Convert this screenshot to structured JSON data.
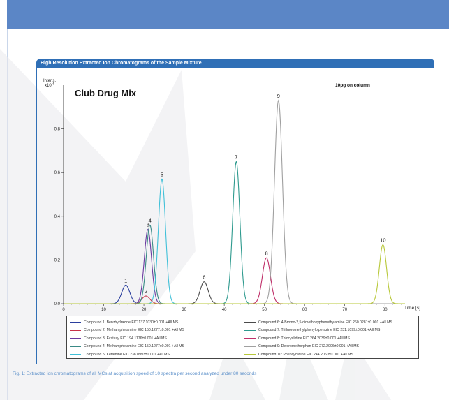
{
  "panel_title": "High Resolution Extracted Ion Chromatograms of the Sample Mixture",
  "caption": "Fig. 1: Extracted ion chromatograms of all MCs at acquisition speed of 10 spectra per second analyzed under 80 seconds",
  "chart_data": {
    "type": "line",
    "title": "Club Drug Mix",
    "annotation": "10pg on column",
    "ylabel_lines": [
      "Intens.",
      "x10"
    ],
    "ylabel_exponent": "4",
    "xlabel": "Time [s]",
    "xlim": [
      0,
      85
    ],
    "ylim": [
      0,
      1.0
    ],
    "x_ticks": [
      0,
      10,
      20,
      30,
      40,
      50,
      60,
      70,
      80
    ],
    "x_tick_labels": [
      "0",
      "10",
      "20",
      "30",
      "40",
      "50",
      "60",
      "70",
      "80"
    ],
    "y_ticks": [
      0.0,
      0.2,
      0.4,
      0.6,
      0.8
    ],
    "y_tick_labels": [
      "0.0",
      "0.2",
      "0.4",
      "0.6",
      "0.8"
    ],
    "legend_position": "bottom",
    "series": [
      {
        "peak_label": "1",
        "legend": "Compound 1: Benzhydrazine  EIC 137.1030±0.001  +All MS",
        "color": "#2b3f9e",
        "center": 15.5,
        "height": 0.085,
        "width": 1.0
      },
      {
        "peak_label": "2",
        "legend": "Compound 2: Methamphetamine  EIC 150.1277±0.001  +All MS",
        "color": "#c8324a",
        "center": 20.5,
        "height": 0.035,
        "width": 1.0
      },
      {
        "peak_label": "3",
        "legend": "Compound 3: Ecstasy  EIC 194.1176±0.001  +All MS",
        "color": "#6a3aa0",
        "center": 21.0,
        "height": 0.34,
        "width": 0.9
      },
      {
        "peak_label": "4",
        "legend": "Compound 4: Methamphetamine  EIC 150.1277±0.001  +All MS",
        "color": "#3a8a86",
        "center": 21.5,
        "height": 0.36,
        "width": 0.9
      },
      {
        "peak_label": "5",
        "legend": "Compound 5: Ketamine  EIC 238.0993±0.001  +All MS",
        "color": "#40c0d8",
        "center": 24.5,
        "height": 0.57,
        "width": 0.9
      },
      {
        "peak_label": "6",
        "legend": "Compound 6: 4-Bromo-2,5-dimethoxyphenethylamine  EIC 260.0281±0.001  +All MS",
        "color": "#4a4a4a",
        "center": 35.0,
        "height": 0.1,
        "width": 1.0
      },
      {
        "peak_label": "7",
        "legend": "Compound 7: Trifluoromethylphenylpiperazine  EIC 231.1099±0.001  +All MS",
        "color": "#2e9a8e",
        "center": 43.0,
        "height": 0.65,
        "width": 0.9
      },
      {
        "peak_label": "8",
        "legend": "Compound 8: Thiocyclidine  EIC 264.2039±0.001  +All MS",
        "color": "#c0306a",
        "center": 50.5,
        "height": 0.21,
        "width": 1.0
      },
      {
        "peak_label": "9",
        "legend": "Compound 9: Dextromethorphan  EIC 272.2006±0.001  +All MS",
        "color": "#a0a0a0",
        "center": 53.5,
        "height": 0.93,
        "width": 1.0
      },
      {
        "peak_label": "10",
        "legend": "Compound 10: Phencyclidine  EIC 244.2060±0.001  +All MS",
        "color": "#b8c83a",
        "center": 79.5,
        "height": 0.27,
        "width": 0.9
      }
    ]
  }
}
